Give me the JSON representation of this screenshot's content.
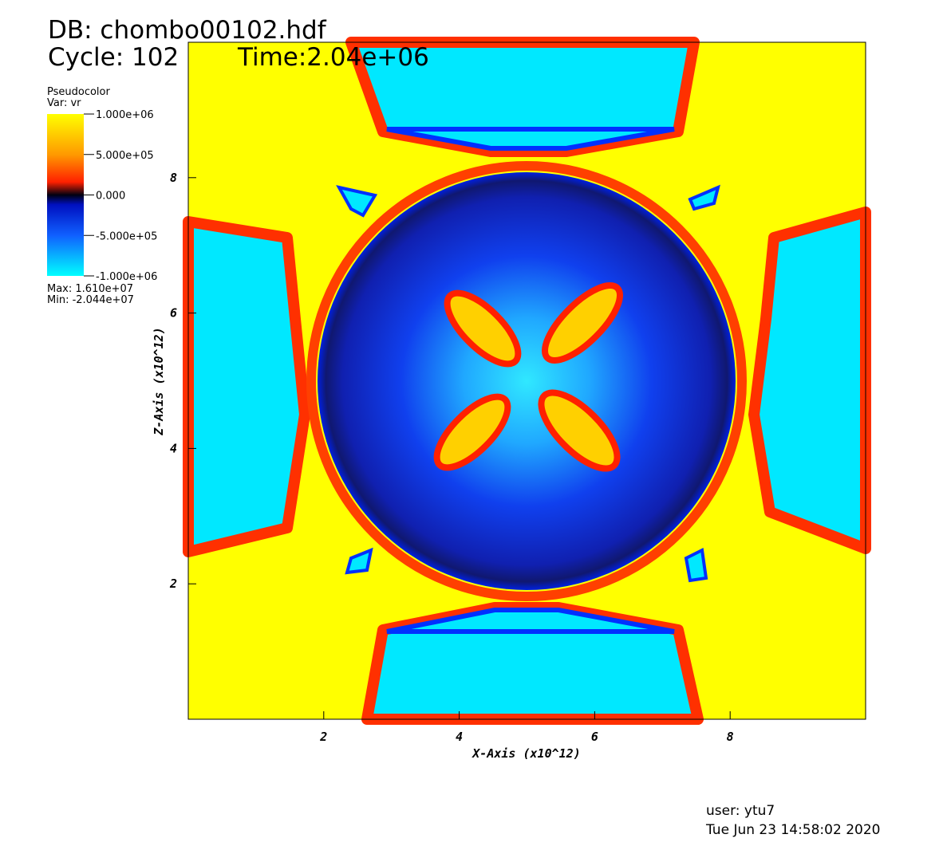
{
  "header": {
    "database": "DB: chombo00102.hdf",
    "cycle": "Cycle: 102",
    "time": "Time:2.04e+06"
  },
  "legend": {
    "plot": "Pseudocolor",
    "variable": "Var: vr",
    "range": [
      -1000000,
      1000000
    ],
    "ticks": [
      {
        "value": 1000000,
        "label": "1.000e+06"
      },
      {
        "value": 500000,
        "label": "5.000e+05"
      },
      {
        "value": 0,
        "label": "0.000"
      },
      {
        "value": -500000,
        "label": "-5.000e+05"
      },
      {
        "value": -1000000,
        "label": "-1.000e+06"
      }
    ],
    "max": "Max:  1.610e+07",
    "min": "Min: -2.044e+07"
  },
  "axes": {
    "x_label": "X-Axis (x10^12)",
    "y_label": "Z-Axis (x10^12)",
    "xlim": [
      0,
      10
    ],
    "ylim": [
      0,
      10
    ],
    "xticks": [
      2,
      4,
      6,
      8
    ],
    "yticks": [
      2,
      4,
      6,
      8
    ]
  },
  "footer": {
    "user": "user: ytu7",
    "date": "Tue Jun 23 14:58:02 2020"
  }
}
